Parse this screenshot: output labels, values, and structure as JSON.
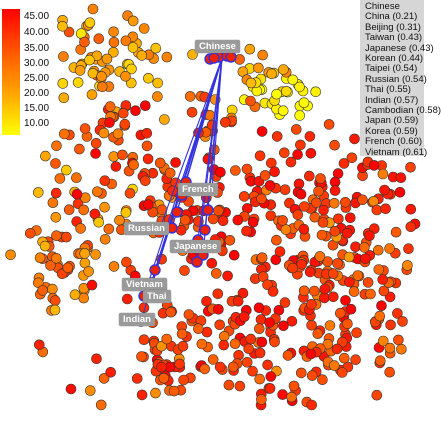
{
  "colorbar": {
    "ticks": [
      "45.00",
      "40.00",
      "35.00",
      "30.00",
      "25.00",
      "20.00",
      "15.00",
      "10.00"
    ],
    "colors": [
      "#ff0000",
      "#ff5a00",
      "#ffa000",
      "#ffff00"
    ]
  },
  "legend": {
    "title": "Chinese",
    "entries": [
      "China (0.21)",
      "Beijing (0.31)",
      "Taiwan (0.43)",
      "Japanese (0.43)",
      "Korean (0.44)",
      "Taipei (0.54)",
      "Russian (0.54)",
      "Thai (0.55)",
      "Indian (0.57)",
      "Cambodian (0.58)",
      "Japan (0.59)",
      "Korea (0.59)",
      "French (0.60)",
      "Vietnam (0.61)"
    ]
  },
  "labels": [
    "Chinese",
    "French",
    "Russian",
    "Japanese",
    "Vietnam",
    "Thai",
    "Indian"
  ],
  "chart_data": {
    "type": "scatter",
    "title": "",
    "xlabel": "",
    "ylabel": "",
    "colorbar_range": [
      10,
      45
    ],
    "highlight_color": "#3333dd",
    "anchor_word": "Chinese",
    "neighbors": [
      {
        "word": "China",
        "distance": 0.21
      },
      {
        "word": "Beijing",
        "distance": 0.31
      },
      {
        "word": "Taiwan",
        "distance": 0.43
      },
      {
        "word": "Japanese",
        "distance": 0.43
      },
      {
        "word": "Korean",
        "distance": 0.44
      },
      {
        "word": "Taipei",
        "distance": 0.54
      },
      {
        "word": "Russian",
        "distance": 0.54
      },
      {
        "word": "Thai",
        "distance": 0.55
      },
      {
        "word": "Indian",
        "distance": 0.57
      },
      {
        "word": "Cambodian",
        "distance": 0.58
      },
      {
        "word": "Japan",
        "distance": 0.59
      },
      {
        "word": "Korea",
        "distance": 0.59
      },
      {
        "word": "French",
        "distance": 0.6
      },
      {
        "word": "Vietnam",
        "distance": 0.61
      }
    ]
  }
}
